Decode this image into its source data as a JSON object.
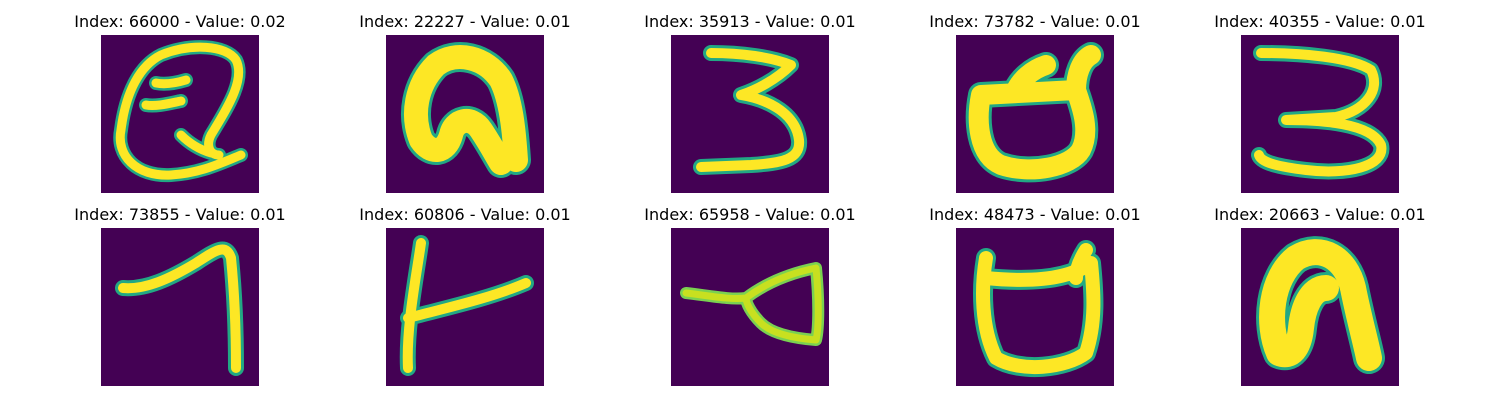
{
  "colors": {
    "background": "#440154",
    "stroke": "#fde725",
    "edge": "#22a884"
  },
  "panels": [
    {
      "title": "Index: 66000 - Value: 0.02"
    },
    {
      "title": "Index: 22227 - Value: 0.01"
    },
    {
      "title": "Index: 35913 - Value: 0.01"
    },
    {
      "title": "Index: 73782 - Value: 0.01"
    },
    {
      "title": "Index: 40355 - Value: 0.01"
    },
    {
      "title": "Index: 73855 - Value: 0.01"
    },
    {
      "title": "Index: 60806 - Value: 0.01"
    },
    {
      "title": "Index: 65958 - Value: 0.01"
    },
    {
      "title": "Index: 48473 - Value: 0.01"
    },
    {
      "title": "Index: 20663 - Value: 0.01"
    }
  ]
}
